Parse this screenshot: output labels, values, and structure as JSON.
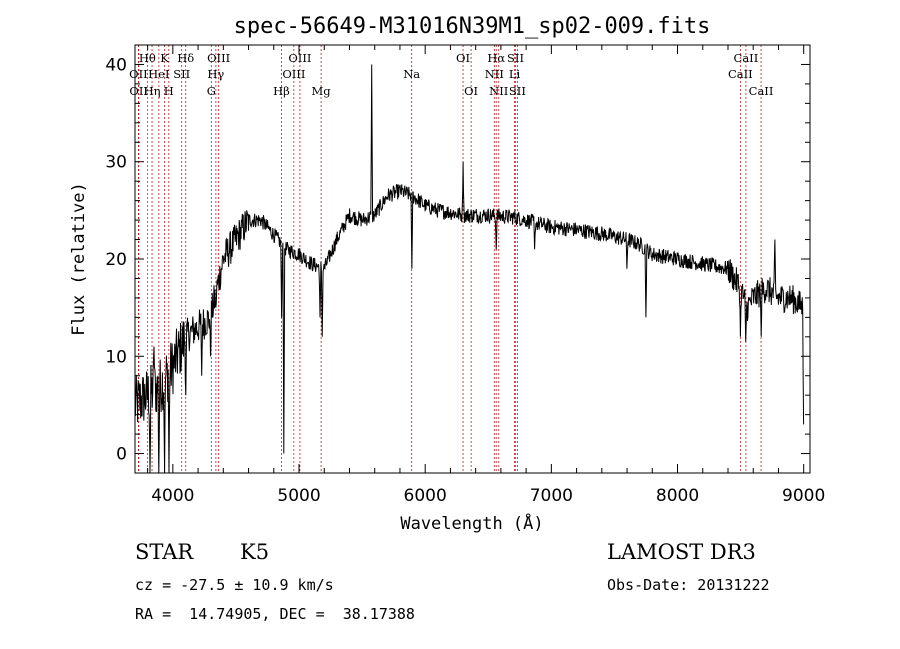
{
  "chart_data": {
    "type": "line",
    "title": "spec-56649-M31016N39M1_sp02-009.fits",
    "xlabel": "Wavelength (Å)",
    "ylabel": "Flux (relative)",
    "xlim": [
      3700,
      9050
    ],
    "ylim": [
      -2,
      42
    ],
    "xticks": [
      4000,
      5000,
      6000,
      7000,
      8000,
      9000
    ],
    "yticks": [
      0,
      10,
      20,
      30,
      40
    ],
    "series": [
      {
        "name": "flux",
        "continuum": [
          [
            3700,
            5
          ],
          [
            3800,
            6
          ],
          [
            3900,
            7
          ],
          [
            4000,
            9
          ],
          [
            4100,
            12
          ],
          [
            4200,
            13
          ],
          [
            4300,
            14
          ],
          [
            4400,
            20
          ],
          [
            4500,
            22
          ],
          [
            4600,
            24
          ],
          [
            4700,
            24
          ],
          [
            4800,
            22.5
          ],
          [
            4900,
            21
          ],
          [
            5000,
            20.5
          ],
          [
            5100,
            19.5
          ],
          [
            5200,
            19
          ],
          [
            5300,
            22
          ],
          [
            5400,
            24.5
          ],
          [
            5500,
            24
          ],
          [
            5600,
            24.5
          ],
          [
            5700,
            26.5
          ],
          [
            5800,
            27
          ],
          [
            5900,
            26.5
          ],
          [
            6000,
            25.5
          ],
          [
            6100,
            25
          ],
          [
            6200,
            24.8
          ],
          [
            6300,
            24.5
          ],
          [
            6400,
            24.5
          ],
          [
            6500,
            24.5
          ],
          [
            6600,
            24.4
          ],
          [
            6700,
            24.3
          ],
          [
            6800,
            24
          ],
          [
            6900,
            23.6
          ],
          [
            7000,
            23.3
          ],
          [
            7200,
            23
          ],
          [
            7400,
            22.6
          ],
          [
            7600,
            22
          ],
          [
            7700,
            21.5
          ],
          [
            7800,
            20.5
          ],
          [
            8000,
            20
          ],
          [
            8200,
            19.5
          ],
          [
            8400,
            19
          ],
          [
            8500,
            17
          ],
          [
            8550,
            15
          ],
          [
            8600,
            16
          ],
          [
            8700,
            17
          ],
          [
            8800,
            16
          ],
          [
            8900,
            16
          ],
          [
            9000,
            15
          ]
        ],
        "features": [
          [
            3820,
            -2
          ],
          [
            3850,
            11
          ],
          [
            3890,
            -2
          ],
          [
            3935,
            -2
          ],
          [
            3970,
            -2
          ],
          [
            4102,
            6
          ],
          [
            4227,
            8
          ],
          [
            4300,
            10
          ],
          [
            4340,
            15
          ],
          [
            4861,
            14
          ],
          [
            4880,
            0
          ],
          [
            5167,
            14
          ],
          [
            5183,
            12
          ],
          [
            5577,
            40
          ],
          [
            5893,
            19
          ],
          [
            6300,
            30
          ],
          [
            6563,
            21
          ],
          [
            6867,
            21
          ],
          [
            7600,
            19
          ],
          [
            7750,
            14
          ],
          [
            8498,
            12
          ],
          [
            8542,
            11.5
          ],
          [
            8662,
            12
          ],
          [
            8770,
            22
          ],
          [
            9000,
            3
          ]
        ]
      }
    ],
    "spectral_lines": [
      {
        "label": "Hθ",
        "wavelength": 3798,
        "row": 0
      },
      {
        "label": "OII",
        "wavelength": 3727,
        "row": 1
      },
      {
        "label": "OII",
        "wavelength": 3729,
        "row": 2
      },
      {
        "label": "Hη",
        "wavelength": 3835,
        "row": 2
      },
      {
        "label": "HeI",
        "wavelength": 3889,
        "row": 1
      },
      {
        "label": "K",
        "wavelength": 3934,
        "row": 0
      },
      {
        "label": "H",
        "wavelength": 3968,
        "row": 2
      },
      {
        "label": "SII",
        "wavelength": 4070,
        "row": 1
      },
      {
        "label": "Hδ",
        "wavelength": 4102,
        "row": 0
      },
      {
        "label": "G",
        "wavelength": 4305,
        "row": 2
      },
      {
        "label": "Hγ",
        "wavelength": 4341,
        "row": 1
      },
      {
        "label": "OIII",
        "wavelength": 4363,
        "row": 0
      },
      {
        "label": "Hβ",
        "wavelength": 4861,
        "row": 2
      },
      {
        "label": "OIII",
        "wavelength": 4959,
        "row": 1
      },
      {
        "label": "OIII",
        "wavelength": 5007,
        "row": 0
      },
      {
        "label": "Mg",
        "wavelength": 5175,
        "row": 2
      },
      {
        "label": "Na",
        "wavelength": 5893,
        "row": 1
      },
      {
        "label": "OI",
        "wavelength": 6300,
        "row": 0
      },
      {
        "label": "OI",
        "wavelength": 6364,
        "row": 2
      },
      {
        "label": "NII",
        "wavelength": 6548,
        "row": 1
      },
      {
        "label": "Hα",
        "wavelength": 6563,
        "row": 0
      },
      {
        "label": "NII",
        "wavelength": 6583,
        "row": 2
      },
      {
        "label": "Li",
        "wavelength": 6708,
        "row": 1
      },
      {
        "label": "SII",
        "wavelength": 6716,
        "row": 0
      },
      {
        "label": "SII",
        "wavelength": 6731,
        "row": 2
      },
      {
        "label": "CaII",
        "wavelength": 8498,
        "row": 1
      },
      {
        "label": "CaII",
        "wavelength": 8542,
        "row": 0
      },
      {
        "label": "CaII",
        "wavelength": 8662,
        "row": 2
      }
    ],
    "colors": {
      "line": "#000000",
      "marker": "#b22222",
      "axes": "#000000"
    }
  },
  "info": {
    "class": "STAR",
    "subclass": "K5",
    "survey": "LAMOST DR3",
    "cz": "cz = -27.5 ± 10.9 km/s",
    "obs_date": "Obs-Date: 20131222",
    "coords": "RA =  14.74905, DEC =  38.17388"
  }
}
